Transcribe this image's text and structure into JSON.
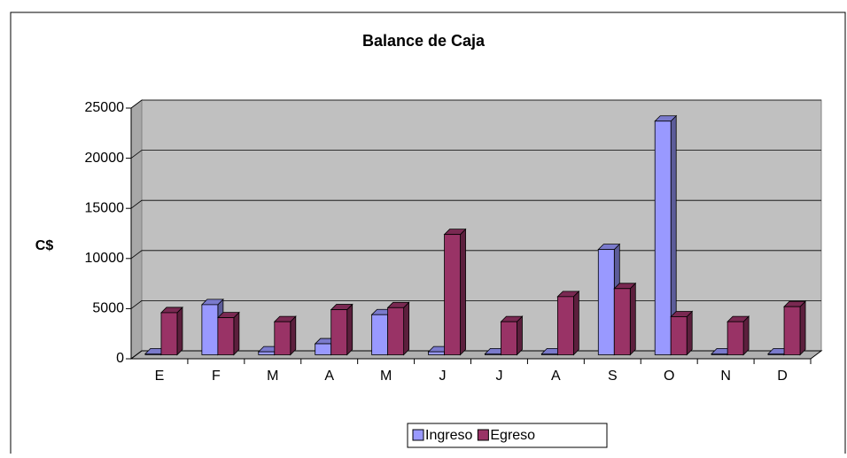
{
  "chart_data": {
    "type": "bar3d",
    "title": "Balance de Caja",
    "y_label": "C$",
    "categories": [
      "E",
      "F",
      "M",
      "A",
      "M",
      "J",
      "J",
      "A",
      "S",
      "O",
      "N",
      "D"
    ],
    "series": [
      {
        "name": "Ingreso",
        "color": "#9999ff",
        "values": [
          100,
          5000,
          300,
          1100,
          4000,
          300,
          100,
          100,
          10500,
          23300,
          100,
          100
        ]
      },
      {
        "name": "Egreso",
        "color": "#993366",
        "values": [
          4200,
          3700,
          3300,
          4500,
          4700,
          12000,
          3300,
          5800,
          6600,
          3800,
          3300,
          4800
        ]
      }
    ],
    "ylim": [
      0,
      25000
    ],
    "yticks": [
      0,
      5000,
      10000,
      15000,
      20000,
      25000
    ],
    "grid": true,
    "legend": "bottom"
  }
}
